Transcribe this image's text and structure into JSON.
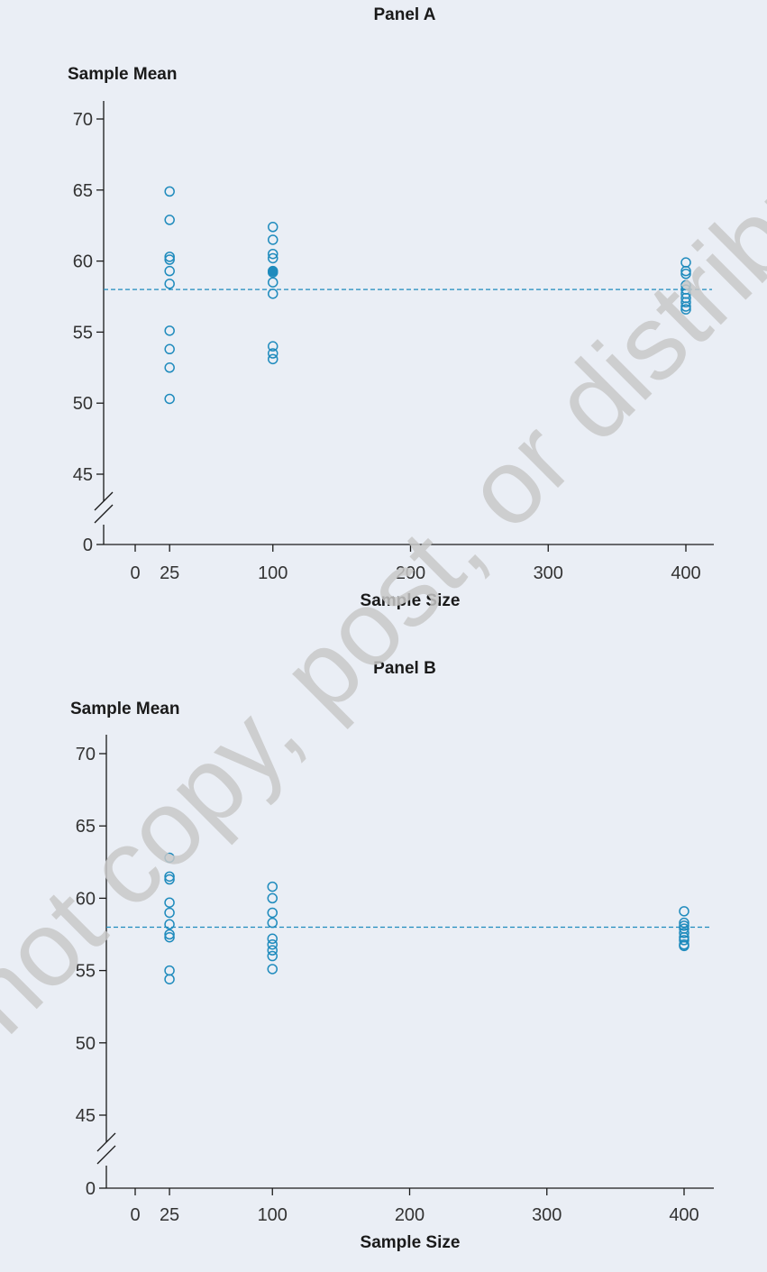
{
  "colors": {
    "background": "#eaeef5",
    "marker": "#1f8bbd",
    "marker_fill_highlight": "#1f8bbd",
    "reference_line": "#1f8bbd",
    "axis": "#1a1a1a",
    "watermark": "#c8c8c8"
  },
  "watermark": "Do not copy, post, or distribute",
  "chart_data": [
    {
      "type": "scatter",
      "title": "Panel A",
      "xlabel": "Sample Size",
      "ylabel": "Sample Mean",
      "x_ticks": [
        0,
        25,
        100,
        200,
        300,
        400
      ],
      "y_ticks": [
        0,
        45,
        50,
        55,
        60,
        65,
        70
      ],
      "y_axis_break": [
        0,
        45
      ],
      "reference_line": 58,
      "grid": false,
      "legend": "none",
      "series": [
        {
          "x": 25,
          "values": [
            64.9,
            62.9,
            60.3,
            60.1,
            59.3,
            58.4,
            55.1,
            53.8,
            52.5,
            50.3
          ]
        },
        {
          "x": 100,
          "values": [
            62.4,
            61.5,
            60.5,
            60.2,
            59.3,
            59.2,
            58.5,
            57.7,
            54.0,
            53.5,
            53.1
          ],
          "filled": [
            59.3
          ]
        },
        {
          "x": 400,
          "values": [
            59.9,
            59.3,
            59.1,
            58.3,
            58.0,
            57.7,
            57.4,
            57.1,
            56.8,
            56.6
          ]
        }
      ]
    },
    {
      "type": "scatter",
      "title": "Panel B",
      "xlabel": "Sample Size",
      "ylabel": "Sample Mean",
      "x_ticks": [
        0,
        25,
        100,
        200,
        300,
        400
      ],
      "y_ticks": [
        0,
        45,
        50,
        55,
        60,
        65,
        70
      ],
      "y_axis_break": [
        0,
        45
      ],
      "reference_line": 58,
      "grid": false,
      "legend": "none",
      "series": [
        {
          "x": 25,
          "values": [
            62.8,
            61.5,
            61.3,
            59.7,
            59.0,
            58.2,
            57.5,
            57.3,
            55.0,
            54.4
          ]
        },
        {
          "x": 100,
          "values": [
            60.8,
            60.0,
            59.0,
            58.3,
            57.2,
            56.8,
            56.4,
            56.0,
            55.1
          ]
        },
        {
          "x": 400,
          "values": [
            59.1,
            58.3,
            58.1,
            57.9,
            57.6,
            57.3,
            57.1,
            56.8,
            56.7
          ]
        }
      ]
    }
  ]
}
